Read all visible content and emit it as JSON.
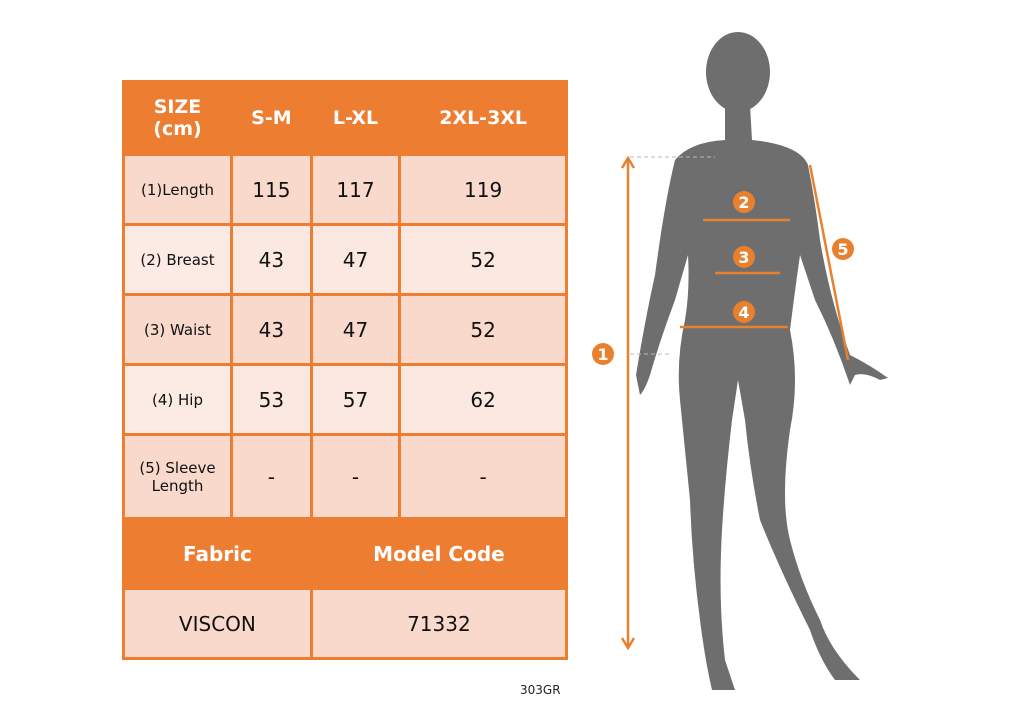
{
  "table": {
    "header": [
      "SIZE\n(cm)",
      "S-M",
      "L-XL",
      "2XL-3XL"
    ],
    "rows": [
      {
        "label": "(1)Length",
        "values": [
          "115",
          "117",
          "119"
        ]
      },
      {
        "label": "(2) Breast",
        "values": [
          "43",
          "47",
          "52"
        ]
      },
      {
        "label": "(3) Waist",
        "values": [
          "43",
          "47",
          "52"
        ]
      },
      {
        "label": "(4) Hip",
        "values": [
          "53",
          "57",
          "62"
        ]
      },
      {
        "label": "(5) Sleeve Length",
        "values": [
          "-",
          "-",
          "-"
        ]
      }
    ],
    "footer_headers": [
      "Fabric",
      "Model Code"
    ],
    "footer_values": [
      "VISCON",
      "71332"
    ]
  },
  "product_code": "303GR",
  "figure": {
    "markers": [
      "1",
      "2",
      "3",
      "4",
      "5"
    ]
  },
  "colors": {
    "accent": "#ED7D31",
    "silhouette": "#6E6E6E"
  }
}
